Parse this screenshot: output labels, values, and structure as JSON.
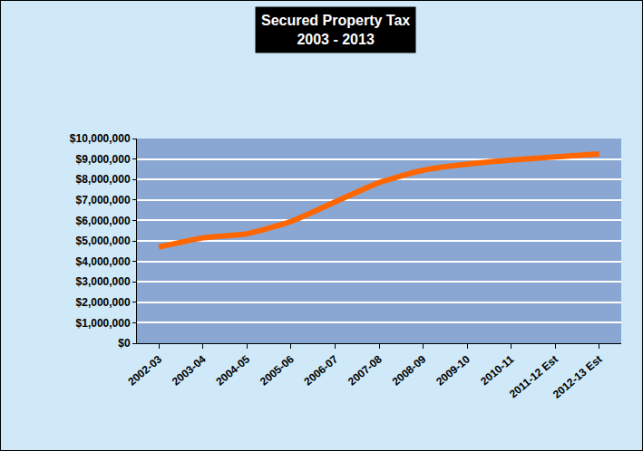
{
  "chart_data": {
    "type": "line",
    "title": "Secured Property Tax",
    "subtitle": "2003 - 2013",
    "categories": [
      "2002-03",
      "2003-04",
      "2004-05",
      "2005-06",
      "2006-07",
      "2007-08",
      "2008-09",
      "2009-10",
      "2010-11",
      "2011-12 Est",
      "2012-13 Est"
    ],
    "values": [
      4700000,
      5150000,
      5350000,
      5950000,
      6900000,
      7850000,
      8450000,
      8750000,
      8950000,
      9100000,
      9250000
    ],
    "color": "#ff6600",
    "ylim": [
      0,
      10000000
    ],
    "yticks": [
      {
        "value": 0,
        "label": "$0"
      },
      {
        "value": 1000000,
        "label": "$1,000,000"
      },
      {
        "value": 2000000,
        "label": "$2,000,000"
      },
      {
        "value": 3000000,
        "label": "$3,000,000"
      },
      {
        "value": 4000000,
        "label": "$4,000,000"
      },
      {
        "value": 5000000,
        "label": "$5,000,000"
      },
      {
        "value": 6000000,
        "label": "$6,000,000"
      },
      {
        "value": 7000000,
        "label": "$7,000,000"
      },
      {
        "value": 8000000,
        "label": "$8,000,000"
      },
      {
        "value": 9000000,
        "label": "$9,000,000"
      },
      {
        "value": 10000000,
        "label": "$10,000,000"
      }
    ],
    "grid": true
  }
}
